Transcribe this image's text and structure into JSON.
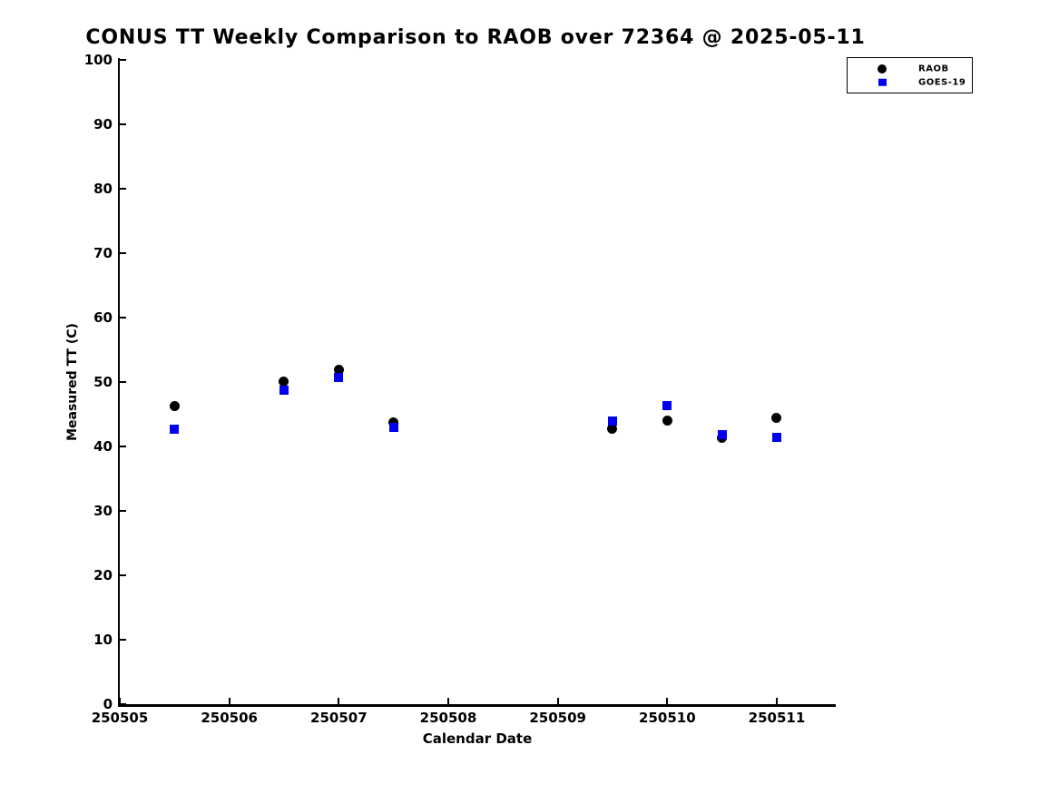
{
  "chart_data": {
    "type": "scatter",
    "title": "CONUS TT Weekly Comparison to RAOB over 72364 @ 2025-05-11",
    "xlabel": "Calendar Date",
    "ylabel": "Measured TT (C)",
    "xlim": [
      250505,
      250511.53
    ],
    "ylim": [
      0,
      100
    ],
    "grid": false,
    "legend_position": "outside-top-right",
    "x_ticks": [
      {
        "v": 250505,
        "label": "250505"
      },
      {
        "v": 250506,
        "label": "250506"
      },
      {
        "v": 250507,
        "label": "250507"
      },
      {
        "v": 250508,
        "label": "250508"
      },
      {
        "v": 250509,
        "label": "250509"
      },
      {
        "v": 250510,
        "label": "250510"
      },
      {
        "v": 250511,
        "label": "250511"
      }
    ],
    "y_ticks": [
      {
        "v": 0,
        "label": "0"
      },
      {
        "v": 10,
        "label": "10"
      },
      {
        "v": 20,
        "label": "20"
      },
      {
        "v": 30,
        "label": "30"
      },
      {
        "v": 40,
        "label": "40"
      },
      {
        "v": 50,
        "label": "50"
      },
      {
        "v": 60,
        "label": "60"
      },
      {
        "v": 70,
        "label": "70"
      },
      {
        "v": 80,
        "label": "80"
      },
      {
        "v": 90,
        "label": "90"
      },
      {
        "v": 100,
        "label": "100"
      }
    ],
    "series": [
      {
        "name": "RAOB",
        "marker": "circle",
        "color": "#000000",
        "points": [
          [
            250505.5,
            46.2
          ],
          [
            250506.5,
            50.1
          ],
          [
            250507.0,
            51.9
          ],
          [
            250507.5,
            43.7
          ],
          [
            250509.5,
            42.8
          ],
          [
            250510.0,
            44.0
          ],
          [
            250510.5,
            41.4
          ],
          [
            250511.0,
            44.5
          ]
        ]
      },
      {
        "name": "GOES-19",
        "marker": "square",
        "color": "#0000ee",
        "points": [
          [
            250505.5,
            42.7
          ],
          [
            250506.5,
            48.7
          ],
          [
            250507.0,
            50.7
          ],
          [
            250507.5,
            43.0
          ],
          [
            250509.5,
            44.0
          ],
          [
            250510.0,
            46.3
          ],
          [
            250510.5,
            41.8
          ],
          [
            250511.0,
            41.4
          ]
        ]
      }
    ]
  }
}
